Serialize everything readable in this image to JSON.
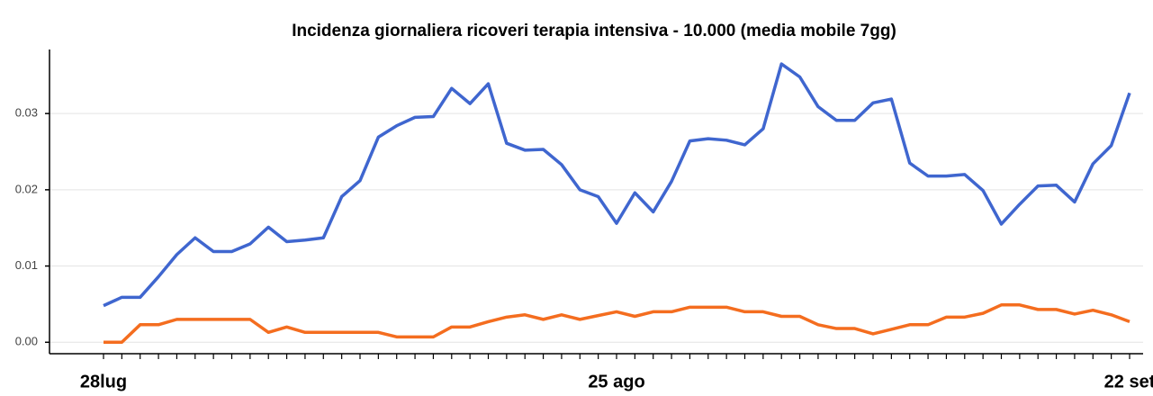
{
  "chart_data": {
    "type": "line",
    "title": "Incidenza giornaliera ricoveri terapia intensiva - 10.000 (media mobile 7gg)",
    "categories": [
      "28lug",
      null,
      null,
      null,
      null,
      null,
      null,
      null,
      null,
      null,
      null,
      null,
      null,
      null,
      null,
      null,
      null,
      null,
      null,
      null,
      null,
      null,
      null,
      null,
      null,
      null,
      null,
      null,
      "25 ago",
      null,
      null,
      null,
      null,
      null,
      null,
      null,
      null,
      null,
      null,
      null,
      null,
      null,
      null,
      null,
      null,
      null,
      null,
      null,
      null,
      null,
      null,
      null,
      null,
      null,
      null,
      null,
      "22 set"
    ],
    "series": [
      {
        "color": "#3f66cf",
        "values": [
          0.0048,
          0.0059,
          0.0059,
          0.0086,
          0.0115,
          0.0137,
          0.0119,
          0.0119,
          0.0129,
          0.0151,
          0.0132,
          0.0134,
          0.0137,
          0.0191,
          0.0212,
          0.0269,
          0.0284,
          0.0295,
          0.0296,
          0.0333,
          0.0313,
          0.0339,
          0.0261,
          0.0252,
          0.0253,
          0.0233,
          0.02,
          0.0191,
          0.0156,
          0.0196,
          0.0171,
          0.0211,
          0.0264,
          0.0267,
          0.0265,
          0.0259,
          0.028,
          0.0365,
          0.0348,
          0.0309,
          0.0291,
          0.0291,
          0.0314,
          0.0319,
          0.0235,
          0.0218,
          0.0218,
          0.022,
          0.0199,
          0.0155,
          0.0181,
          0.0205,
          0.0206,
          0.0184,
          0.0234,
          0.0258,
          0.0327
        ]
      },
      {
        "color": "#f46d1f",
        "values": [
          0.0,
          0.0,
          0.0023,
          0.0023,
          0.003,
          0.003,
          0.003,
          0.003,
          0.003,
          0.0013,
          0.002,
          0.0013,
          0.0013,
          0.0013,
          0.0013,
          0.0013,
          0.0007,
          0.0007,
          0.0007,
          0.002,
          0.002,
          0.0027,
          0.0033,
          0.0036,
          0.003,
          0.0036,
          0.003,
          0.0035,
          0.004,
          0.0034,
          0.004,
          0.004,
          0.0046,
          0.0046,
          0.0046,
          0.004,
          0.004,
          0.0034,
          0.0034,
          0.0023,
          0.0018,
          0.0018,
          0.0011,
          0.0017,
          0.0023,
          0.0023,
          0.0033,
          0.0033,
          0.0038,
          0.0049,
          0.0049,
          0.0043,
          0.0043,
          0.0037,
          0.0042,
          0.0036,
          0.0027
        ]
      }
    ],
    "ylim": [
      -0.0015,
      0.0384
    ],
    "yticks": [
      {
        "value": 0,
        "label": "0.00"
      },
      0.01,
      0.02,
      0.03
    ],
    "grid": true
  }
}
